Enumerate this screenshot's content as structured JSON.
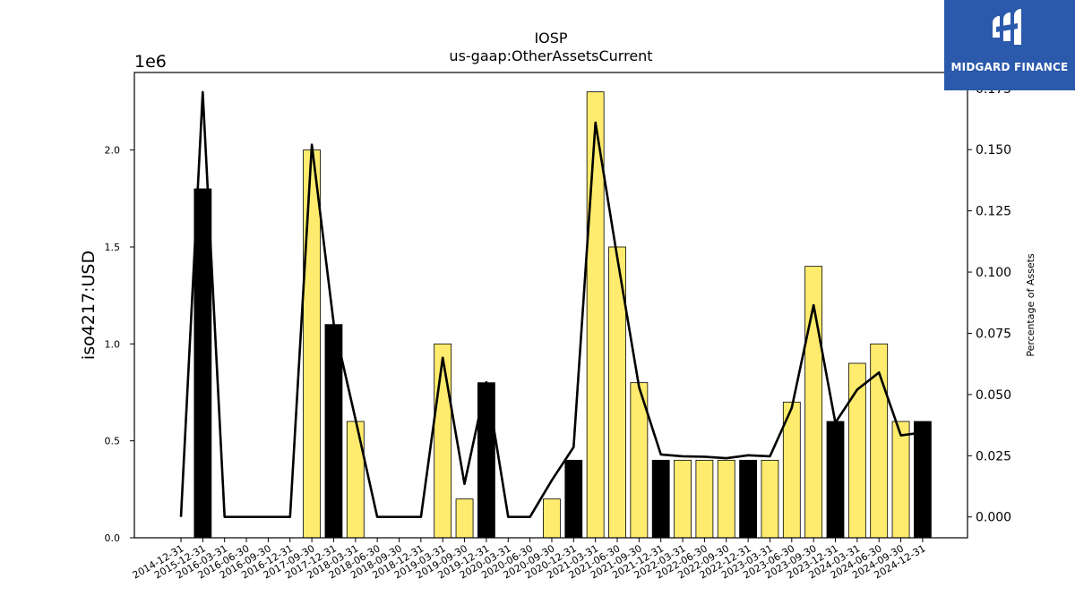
{
  "logo": {
    "text": "MIDGARD FINANCE"
  },
  "colors": {
    "bar_yellow": "#ffec6e",
    "bar_black": "#000000",
    "line": "#000000",
    "logo_bg": "#2b5aac"
  },
  "chart_data": {
    "type": "bar",
    "title": "IOSP",
    "subtitle": "us-gaap:OtherAssetsCurrent",
    "ylabel": "iso4217:USD",
    "y2label": "Percentage of Assets",
    "y_exponent_label": "1e6",
    "ylim": [
      0,
      2.4
    ],
    "y_ticks": [
      0.0,
      0.5,
      1.0,
      1.5,
      2.0
    ],
    "y_tick_labels": [
      "0.0",
      "0.5",
      "1.0",
      "1.5",
      "2.0"
    ],
    "y2lim": [
      -0.0085,
      0.1815
    ],
    "y2_ticks": [
      0.0,
      0.025,
      0.05,
      0.075,
      0.1,
      0.125,
      0.15,
      0.175
    ],
    "y2_tick_labels": [
      "0.000",
      "0.025",
      "0.050",
      "0.075",
      "0.100",
      "0.125",
      "0.150",
      "0.175"
    ],
    "categories": [
      "2014-12-31",
      "2015-12-31",
      "2016-03-31",
      "2016-06-30",
      "2016-09-30",
      "2016-12-31",
      "2017-09-30",
      "2017-12-31",
      "2018-03-31",
      "2018-06-30",
      "2018-09-30",
      "2018-12-31",
      "2019-03-31",
      "2019-09-30",
      "2019-12-31",
      "2020-03-31",
      "2020-06-30",
      "2020-09-30",
      "2020-12-31",
      "2021-03-31",
      "2021-06-30",
      "2021-09-30",
      "2021-12-31",
      "2022-03-31",
      "2022-06-30",
      "2022-09-30",
      "2022-12-31",
      "2023-03-31",
      "2023-06-30",
      "2023-09-30",
      "2023-12-31",
      "2024-03-31",
      "2024-06-30",
      "2024-09-30",
      "2024-12-31"
    ],
    "series": [
      {
        "values": [
          0,
          1.8,
          0,
          0,
          0,
          0,
          2.0,
          1.1,
          0.6,
          0,
          0,
          0,
          1.0,
          0.2,
          0.8,
          0,
          0,
          0.2,
          0.4,
          2.3,
          1.5,
          0.8,
          0.4,
          0.4,
          0.4,
          0.4,
          0.4,
          0.4,
          0.7,
          1.4,
          0.6,
          0.9,
          1.0,
          0.6,
          0.6
        ],
        "bar_colors": [
          "yellow",
          "black",
          "yellow",
          "yellow",
          "yellow",
          "yellow",
          "yellow",
          "black",
          "yellow",
          "yellow",
          "yellow",
          "yellow",
          "yellow",
          "yellow",
          "black",
          "yellow",
          "yellow",
          "yellow",
          "black",
          "yellow",
          "yellow",
          "yellow",
          "black",
          "yellow",
          "yellow",
          "yellow",
          "black",
          "yellow",
          "yellow",
          "yellow",
          "black",
          "yellow",
          "yellow",
          "yellow",
          "black"
        ]
      },
      {
        "axis": "right",
        "type": "line",
        "values": [
          0.0,
          0.1735,
          0.0,
          0.0,
          0.0,
          0.0,
          0.152,
          0.079,
          0.04,
          0.0,
          0.0,
          0.0,
          0.065,
          0.0135,
          0.055,
          0.0,
          0.0,
          0.015,
          0.0285,
          0.161,
          0.106,
          0.053,
          0.0255,
          0.0248,
          0.0246,
          0.024,
          0.0252,
          0.0248,
          0.0445,
          0.0865,
          0.0385,
          0.052,
          0.059,
          0.0333,
          0.0345
        ]
      }
    ],
    "grid": false
  }
}
